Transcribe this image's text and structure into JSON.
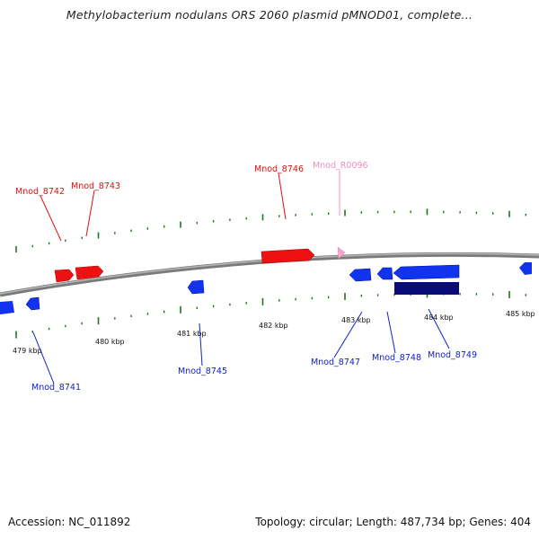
{
  "title": "Methylobacterium nodulans ORS 2060 plasmid pMNOD01, complete...",
  "footer": {
    "accession": "Accession: NC_011892",
    "summary": "Topology: circular; Length: 487,734 bp; Genes: 404"
  },
  "colors": {
    "forward_gene": "#ee1111",
    "forward_rna": "#f7a6cf",
    "reverse_gene": "#1133ee",
    "reverse_cds": "#0a0a78",
    "tick": "#1a7a1a",
    "backbone": "#808080"
  },
  "scale_labels": [
    "479 kbp",
    "480 kbp",
    "481 kbp",
    "482 kbp",
    "483 kbp",
    "484 kbp",
    "485 kbp"
  ],
  "genes_forward": [
    {
      "label": "Mnod_8742",
      "color": "#dd1111"
    },
    {
      "label": "Mnod_8743",
      "color": "#dd1111"
    },
    {
      "label": "Mnod_8746",
      "color": "#dd1111"
    },
    {
      "label": "Mnod_R0096",
      "color": "#f08ec0"
    }
  ],
  "genes_reverse": [
    {
      "label": "Mnod_8741",
      "color": "#1122cc"
    },
    {
      "label": "Mnod_8745",
      "color": "#1122cc"
    },
    {
      "label": "Mnod_8747",
      "color": "#1122cc"
    },
    {
      "label": "Mnod_8748",
      "color": "#1122cc"
    },
    {
      "label": "Mnod_8749",
      "color": "#1122cc"
    }
  ]
}
